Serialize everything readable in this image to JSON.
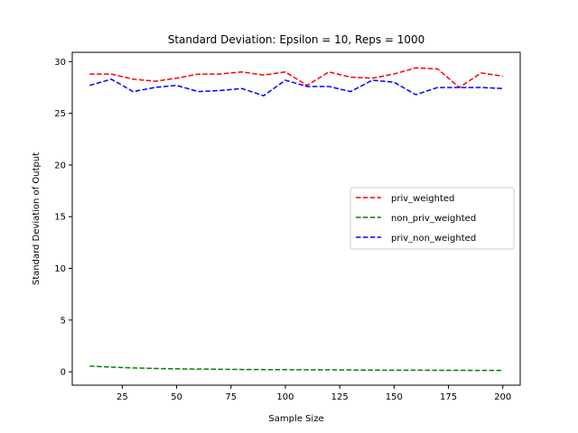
{
  "chart_data": {
    "type": "line",
    "title": "Standard Deviation: Epsilon = 10, Reps = 1000",
    "xlabel": "Sample Size",
    "ylabel": "Standard Deviation of Output",
    "xlim": [
      2,
      208
    ],
    "ylim": [
      -1.3,
      30.9
    ],
    "xticks": [
      25,
      50,
      75,
      100,
      125,
      150,
      175,
      200
    ],
    "yticks": [
      0,
      5,
      10,
      15,
      20,
      25,
      30
    ],
    "grid": false,
    "legend_position": "center-right",
    "x": [
      10,
      20,
      30,
      40,
      50,
      60,
      70,
      80,
      90,
      100,
      110,
      120,
      130,
      140,
      150,
      160,
      170,
      180,
      190,
      200
    ],
    "series": [
      {
        "name": "priv_weighted",
        "color": "#ff0000",
        "dash": "dashed",
        "values": [
          28.8,
          28.8,
          28.3,
          28.1,
          28.4,
          28.8,
          28.8,
          29.0,
          28.7,
          29.0,
          27.7,
          29.0,
          28.5,
          28.4,
          28.8,
          29.4,
          29.3,
          27.5,
          28.9,
          28.6
        ]
      },
      {
        "name": "non_priv_weighted",
        "color": "#008000",
        "dash": "dashed",
        "values": [
          0.55,
          0.45,
          0.37,
          0.32,
          0.28,
          0.26,
          0.24,
          0.22,
          0.21,
          0.2,
          0.19,
          0.18,
          0.17,
          0.16,
          0.15,
          0.15,
          0.14,
          0.14,
          0.13,
          0.13
        ]
      },
      {
        "name": "priv_non_weighted",
        "color": "#0000ff",
        "dash": "dashed",
        "values": [
          27.7,
          28.3,
          27.1,
          27.5,
          27.7,
          27.1,
          27.2,
          27.4,
          26.7,
          28.2,
          27.6,
          27.6,
          27.1,
          28.2,
          28.0,
          26.8,
          27.5,
          27.5,
          27.5,
          27.4
        ]
      }
    ]
  }
}
